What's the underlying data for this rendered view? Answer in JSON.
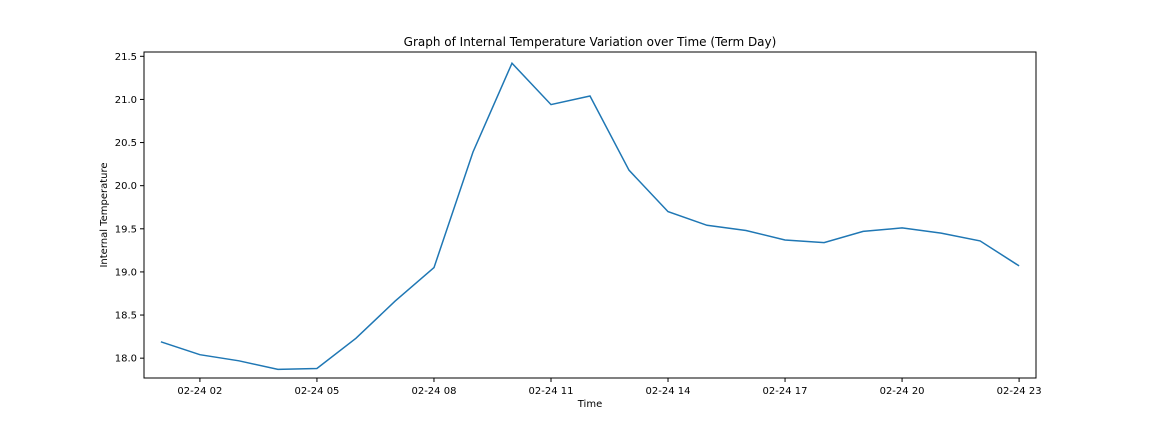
{
  "chart_data": {
    "type": "line",
    "title": "Graph of Internal Temperature Variation over Time (Term Day)",
    "xlabel": "Time",
    "ylabel": "Internal Temperature",
    "x_ticks": [
      "02-24 02",
      "02-24 05",
      "02-24 08",
      "02-24 11",
      "02-24 14",
      "02-24 17",
      "02-24 20",
      "02-24 23"
    ],
    "y_ticks": [
      "18.0",
      "18.5",
      "19.0",
      "19.5",
      "20.0",
      "20.5",
      "21.0",
      "21.5"
    ],
    "xlim": [
      "02-24 00:34",
      "02-24 23:26"
    ],
    "ylim": [
      17.77,
      21.55
    ],
    "grid": false,
    "series": [
      {
        "color": "#1f77b4",
        "x": [
          "02-24 01",
          "02-24 02",
          "02-24 03",
          "02-24 04",
          "02-24 05",
          "02-24 06",
          "02-24 07",
          "02-24 08",
          "02-24 09",
          "02-24 10",
          "02-24 11",
          "02-24 12",
          "02-24 13",
          "02-24 14",
          "02-24 15",
          "02-24 16",
          "02-24 17",
          "02-24 18",
          "02-24 19",
          "02-24 20",
          "02-24 21",
          "02-24 22",
          "02-24 23"
        ],
        "values": [
          18.19,
          18.04,
          17.97,
          17.87,
          17.88,
          18.23,
          18.66,
          19.05,
          20.39,
          21.42,
          20.94,
          21.04,
          20.18,
          19.7,
          19.54,
          19.48,
          19.37,
          19.34,
          19.47,
          19.51,
          19.45,
          19.36,
          19.07
        ]
      }
    ]
  }
}
